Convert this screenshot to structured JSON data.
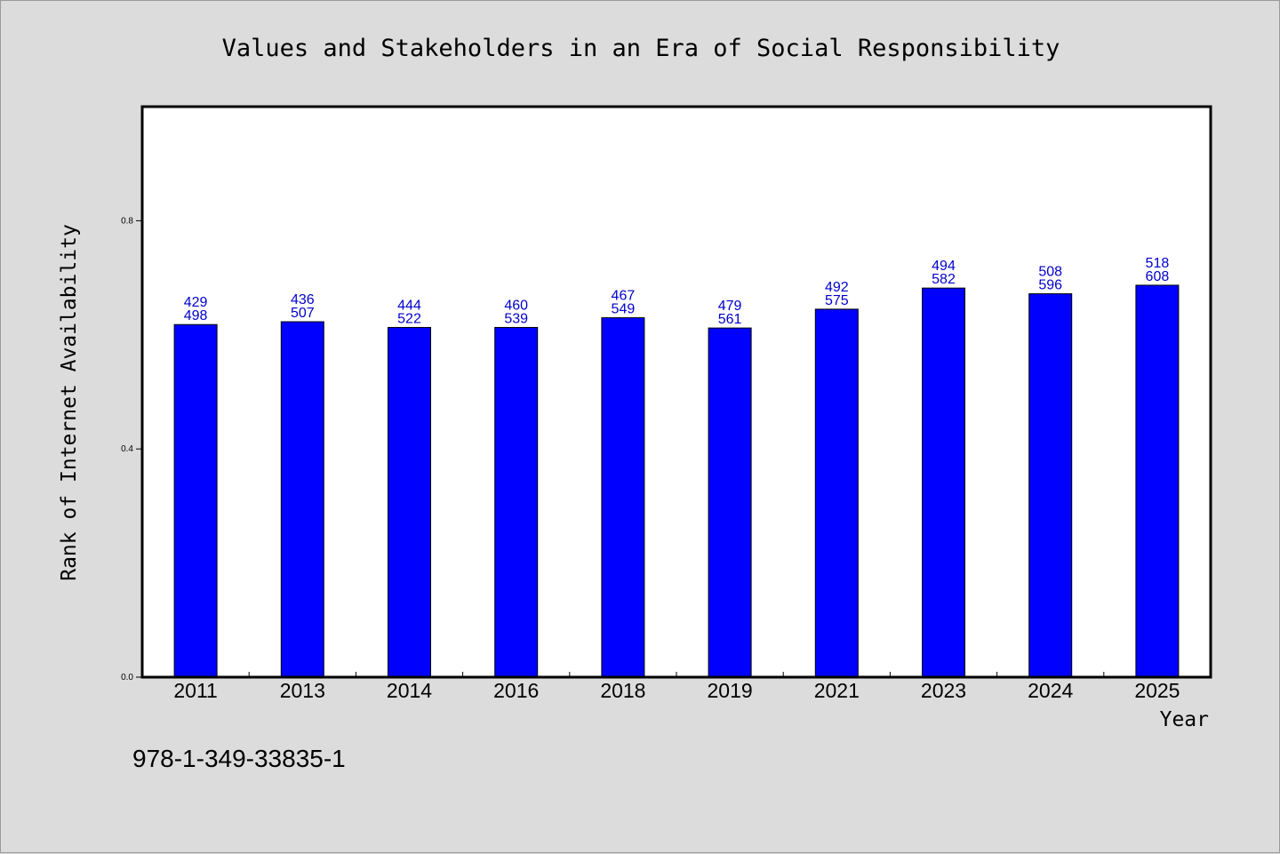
{
  "chart_data": {
    "type": "bar",
    "title": "Values and Stakeholders in an Era of Social Responsibility",
    "xlabel": "Year",
    "ylabel": "Rank of Internet Availability",
    "categories": [
      "2011",
      "2013",
      "2014",
      "2016",
      "2018",
      "2019",
      "2021",
      "2023",
      "2024",
      "2025"
    ],
    "values": [
      0.618,
      0.623,
      0.613,
      0.613,
      0.63,
      0.612,
      0.645,
      0.682,
      0.672,
      0.687
    ],
    "labels_top": [
      "429",
      "436",
      "444",
      "460",
      "467",
      "479",
      "492",
      "494",
      "508",
      "518"
    ],
    "labels_bottom": [
      "498",
      "507",
      "522",
      "539",
      "549",
      "561",
      "575",
      "582",
      "596",
      "608"
    ],
    "ylim": [
      0,
      1.0
    ],
    "yticks": [
      0.0,
      0.4,
      0.8
    ],
    "ytick_labels": [
      "0.0",
      "0.4",
      "0.8"
    ],
    "grid": false,
    "bar_color": "#0000ff",
    "label_color": "#0000cc"
  },
  "footer": {
    "isbn": "978-1-349-33835-1"
  }
}
